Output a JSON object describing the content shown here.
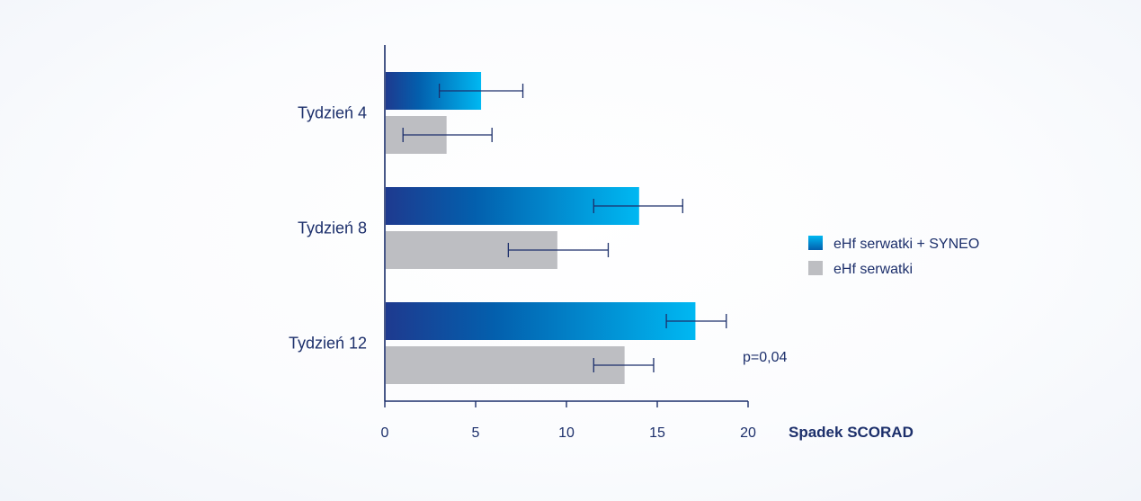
{
  "chart_data": {
    "type": "bar",
    "orientation": "horizontal",
    "categories": [
      "Tydzień 4",
      "Tydzień 8",
      "Tydzień 12"
    ],
    "series": [
      {
        "name": "eHf serwatki + SYNEO",
        "values": [
          5.3,
          14.0,
          17.1
        ],
        "error": [
          [
            3.0,
            7.6
          ],
          [
            11.5,
            16.4
          ],
          [
            15.5,
            18.8
          ]
        ],
        "color": "#00b2f0",
        "gradient": [
          "#1e3a8f",
          "#035fad",
          "#00b8f2"
        ]
      },
      {
        "name": "eHf serwatki",
        "values": [
          3.4,
          9.5,
          13.2
        ],
        "error": [
          [
            1.0,
            5.9
          ],
          [
            6.8,
            12.3
          ],
          [
            11.5,
            14.8
          ]
        ],
        "color": "#bdbec2"
      }
    ],
    "xlabel": "Spadek SCORAD",
    "xlim": [
      0,
      20
    ],
    "xticks": [
      0,
      5,
      10,
      15,
      20
    ],
    "legend": "right",
    "annotation": "p=0,04",
    "axis_color": "#1c2f6b"
  }
}
